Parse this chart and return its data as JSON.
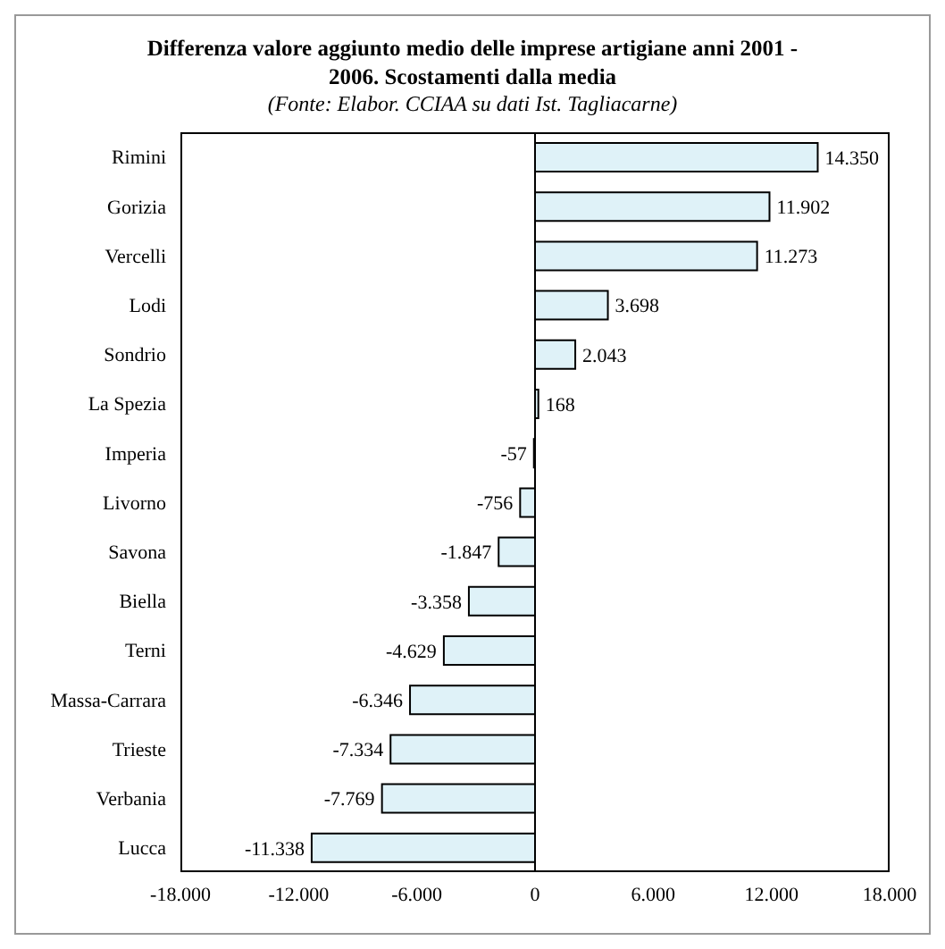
{
  "chart_data": {
    "type": "bar",
    "orientation": "horizontal",
    "title": "Differenza valore aggiunto medio delle imprese artigiane anni 2001 - 2006. Scostamenti dalla media",
    "subtitle": "(Fonte: Elabor. CCIAA su dati Ist. Tagliacarne)",
    "categories": [
      "Rimini",
      "Gorizia",
      "Vercelli",
      "Lodi",
      "Sondrio",
      "La Spezia",
      "Imperia",
      "Livorno",
      "Savona",
      "Biella",
      "Terni",
      "Massa-Carrara",
      "Trieste",
      "Verbania",
      "Lucca"
    ],
    "values": [
      14350,
      11902,
      11273,
      3698,
      2043,
      168,
      -57,
      -756,
      -1847,
      -3358,
      -4629,
      -6346,
      -7334,
      -7769,
      -11338
    ],
    "value_labels": [
      "14.350",
      "11.902",
      "11.273",
      "3.698",
      "2.043",
      "168",
      "-57",
      "-756",
      "-1.847",
      "-3.358",
      "-4.629",
      "-6.346",
      "-7.334",
      "-7.769",
      "-11.338"
    ],
    "color": "#dff2f8",
    "xlim": [
      -18000,
      18000
    ],
    "xticks": [
      {
        "value": -18000,
        "label": "-18.000"
      },
      {
        "value": -12000,
        "label": "-12.000"
      },
      {
        "value": -6000,
        "label": "-6.000"
      },
      0,
      {
        "value": 6000,
        "label": "6.000"
      },
      {
        "value": 12000,
        "label": "12.000"
      },
      {
        "value": 18000,
        "label": "18.000"
      }
    ],
    "legend": false
  }
}
